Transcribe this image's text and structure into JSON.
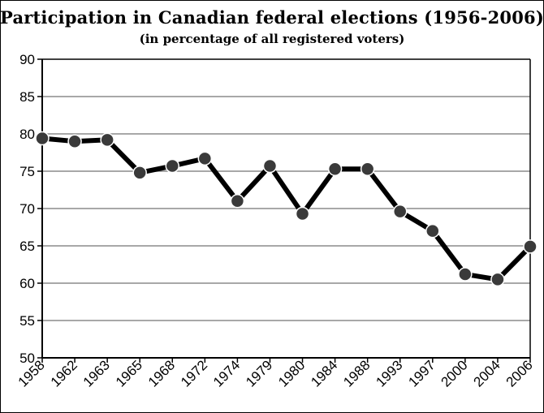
{
  "chart_data": {
    "type": "line",
    "title": "Participation in Canadian federal elections (1956-2006)",
    "subtitle": "(in percentage of all registered voters)",
    "xlabel": "",
    "ylabel": "",
    "categories": [
      "1958",
      "1962",
      "1963",
      "1965",
      "1968",
      "1972",
      "1974",
      "1979",
      "1980",
      "1984",
      "1988",
      "1993",
      "1997",
      "2000",
      "2004",
      "2006"
    ],
    "series": [
      {
        "values": [
          79.4,
          79.0,
          79.2,
          74.8,
          75.7,
          76.7,
          71.0,
          75.7,
          69.3,
          75.3,
          75.3,
          69.6,
          67.0,
          61.2,
          60.5,
          64.9
        ]
      }
    ],
    "ylim": [
      50,
      90
    ],
    "yticks": [
      "50",
      "55",
      "60",
      "65",
      "70",
      "75",
      "80",
      "85",
      "90"
    ],
    "grid": true,
    "colors": {
      "line": "#000000",
      "marker_fill": "#3a3a3a",
      "marker_stroke": "#ffffff",
      "grid": "#8c8c8c"
    }
  }
}
